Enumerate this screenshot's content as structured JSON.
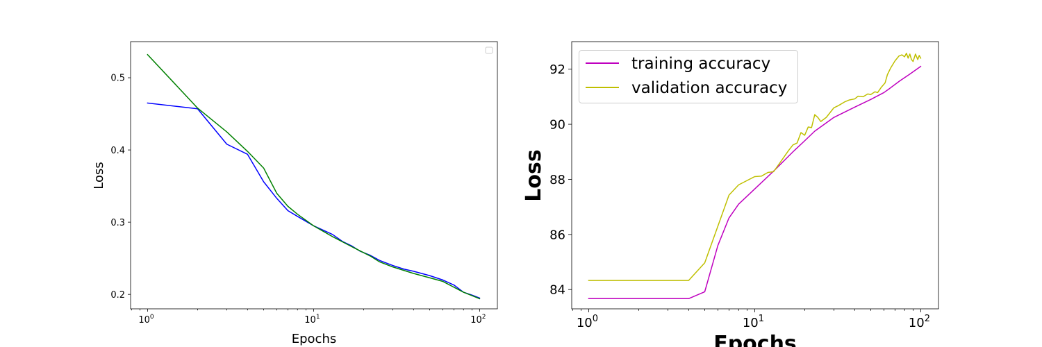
{
  "chart_data": [
    {
      "type": "line",
      "title": "",
      "xlabel": "Epochs",
      "ylabel": "Loss",
      "xscale": "log",
      "xlim": [
        0.79,
        128
      ],
      "ylim": [
        0.18,
        0.55
      ],
      "grid": false,
      "legend": {
        "placement": "top-right",
        "entries": []
      },
      "xticks": [
        {
          "value": 1,
          "base": "10",
          "exp": "0"
        },
        {
          "value": 10,
          "base": "10",
          "exp": "1"
        },
        {
          "value": 100,
          "base": "10",
          "exp": "2"
        }
      ],
      "yticks": [
        {
          "value": 0.2,
          "label": "0.2"
        },
        {
          "value": 0.3,
          "label": "0.3"
        },
        {
          "value": 0.4,
          "label": "0.4"
        },
        {
          "value": 0.5,
          "label": "0.5"
        }
      ],
      "series": [
        {
          "color": "#0000ff",
          "points": [
            [
              1,
              0.465
            ],
            [
              2,
              0.457
            ],
            [
              3,
              0.408
            ],
            [
              4,
              0.394
            ],
            [
              5,
              0.356
            ],
            [
              6,
              0.333
            ],
            [
              7,
              0.316
            ],
            [
              8,
              0.308
            ],
            [
              10,
              0.295
            ],
            [
              13,
              0.283
            ],
            [
              15,
              0.273
            ],
            [
              17,
              0.267
            ],
            [
              19,
              0.26
            ],
            [
              22,
              0.254
            ],
            [
              25,
              0.247
            ],
            [
              30,
              0.24
            ],
            [
              35,
              0.235
            ],
            [
              40,
              0.232
            ],
            [
              50,
              0.226
            ],
            [
              60,
              0.22
            ],
            [
              70,
              0.213
            ],
            [
              80,
              0.203
            ],
            [
              90,
              0.199
            ],
            [
              100,
              0.195
            ]
          ]
        },
        {
          "color": "#008000",
          "points": [
            [
              1,
              0.532
            ],
            [
              2,
              0.458
            ],
            [
              3,
              0.425
            ],
            [
              4,
              0.398
            ],
            [
              5,
              0.375
            ],
            [
              6,
              0.34
            ],
            [
              7,
              0.322
            ],
            [
              8,
              0.311
            ],
            [
              10,
              0.295
            ],
            [
              13,
              0.28
            ],
            [
              17,
              0.266
            ],
            [
              22,
              0.253
            ],
            [
              25,
              0.245
            ],
            [
              30,
              0.238
            ],
            [
              40,
              0.229
            ],
            [
              50,
              0.223
            ],
            [
              60,
              0.218
            ],
            [
              70,
              0.21
            ],
            [
              80,
              0.203
            ],
            [
              100,
              0.194
            ]
          ]
        }
      ]
    },
    {
      "type": "line",
      "title": "",
      "xlabel": "Epochs",
      "ylabel": "Loss",
      "xscale": "log",
      "xlim": [
        0.79,
        128
      ],
      "ylim": [
        83.3,
        93.0
      ],
      "grid": false,
      "legend": {
        "placement": "top-left",
        "entries": [
          {
            "label": "training accuracy",
            "color": "#bf00bf"
          },
          {
            "label": "validation accuracy",
            "color": "#bfbf00"
          }
        ]
      },
      "xticks": [
        {
          "value": 1,
          "base": "10",
          "exp": "0"
        },
        {
          "value": 10,
          "base": "10",
          "exp": "1"
        },
        {
          "value": 100,
          "base": "10",
          "exp": "2"
        }
      ],
      "yticks": [
        {
          "value": 84,
          "label": "84"
        },
        {
          "value": 86,
          "label": "86"
        },
        {
          "value": 88,
          "label": "88"
        },
        {
          "value": 90,
          "label": "90"
        },
        {
          "value": 92,
          "label": "92"
        }
      ],
      "series": [
        {
          "name": "training accuracy",
          "color": "#bf00bf",
          "points": [
            [
              1,
              83.67
            ],
            [
              2,
              83.67
            ],
            [
              3,
              83.67
            ],
            [
              4,
              83.67
            ],
            [
              5,
              83.92
            ],
            [
              6,
              85.6
            ],
            [
              7,
              86.6
            ],
            [
              8,
              87.1
            ],
            [
              10,
              87.65
            ],
            [
              13,
              88.3
            ],
            [
              17,
              89.0
            ],
            [
              20,
              89.4
            ],
            [
              23,
              89.75
            ],
            [
              30,
              90.25
            ],
            [
              40,
              90.62
            ],
            [
              50,
              90.9
            ],
            [
              60,
              91.15
            ],
            [
              65,
              91.3
            ],
            [
              75,
              91.58
            ],
            [
              85,
              91.8
            ],
            [
              100,
              92.1
            ]
          ]
        },
        {
          "name": "validation accuracy",
          "color": "#bfbf00",
          "points": [
            [
              1,
              84.33
            ],
            [
              2,
              84.33
            ],
            [
              3,
              84.33
            ],
            [
              4,
              84.33
            ],
            [
              5,
              84.97
            ],
            [
              6,
              86.3
            ],
            [
              7,
              87.43
            ],
            [
              8,
              87.8
            ],
            [
              10,
              88.1
            ],
            [
              11,
              88.12
            ],
            [
              12,
              88.25
            ],
            [
              13,
              88.28
            ],
            [
              14,
              88.55
            ],
            [
              16,
              89.05
            ],
            [
              17,
              89.25
            ],
            [
              18,
              89.32
            ],
            [
              19,
              89.7
            ],
            [
              20,
              89.6
            ],
            [
              21,
              89.9
            ],
            [
              22,
              89.88
            ],
            [
              23,
              90.35
            ],
            [
              24,
              90.25
            ],
            [
              25,
              90.1
            ],
            [
              27,
              90.25
            ],
            [
              30,
              90.6
            ],
            [
              32,
              90.68
            ],
            [
              35,
              90.82
            ],
            [
              37,
              90.88
            ],
            [
              40,
              90.92
            ],
            [
              42,
              91.02
            ],
            [
              45,
              91.0
            ],
            [
              48,
              91.1
            ],
            [
              50,
              91.08
            ],
            [
              53,
              91.18
            ],
            [
              55,
              91.15
            ],
            [
              58,
              91.35
            ],
            [
              61,
              91.5
            ],
            [
              63,
              91.8
            ],
            [
              66,
              92.05
            ],
            [
              70,
              92.3
            ],
            [
              74,
              92.48
            ],
            [
              77,
              92.52
            ],
            [
              80,
              92.45
            ],
            [
              82,
              92.58
            ],
            [
              84,
              92.4
            ],
            [
              86,
              92.55
            ],
            [
              88,
              92.35
            ],
            [
              90,
              92.28
            ],
            [
              93,
              92.55
            ],
            [
              96,
              92.35
            ],
            [
              98,
              92.5
            ],
            [
              100,
              92.4
            ]
          ]
        }
      ]
    }
  ]
}
